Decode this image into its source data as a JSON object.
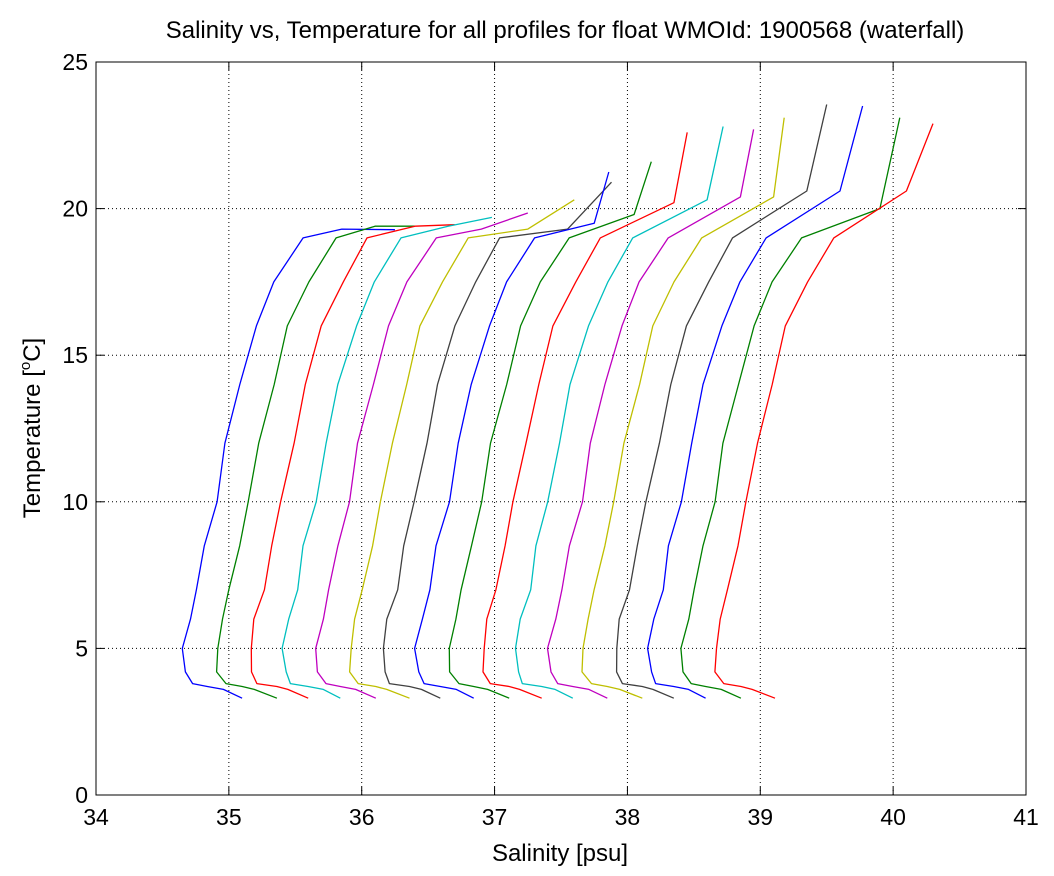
{
  "chart_data": {
    "type": "line",
    "title": "Salinity vs, Temperature for all profiles for float WMOId: 1900568 (waterfall)",
    "xlabel": "Salinity [psu]",
    "ylabel_text": "Temperature [",
    "ylabel_sup": "o",
    "ylabel_tail": "C]",
    "xlim": [
      34,
      41
    ],
    "ylim": [
      0,
      25
    ],
    "x_ticks": [
      "34",
      "35",
      "36",
      "37",
      "38",
      "39",
      "40",
      "41"
    ],
    "y_ticks": [
      "0",
      "5",
      "10",
      "15",
      "20",
      "25"
    ],
    "grid": true,
    "grid_style": "dotted",
    "profile_offset_psu": 0.25,
    "temperature_levels": [
      3.3,
      3.6,
      3.7,
      3.8,
      4.2,
      5,
      6,
      7,
      8.5,
      10,
      12,
      14,
      16,
      17.5,
      19
    ],
    "base_salinity": [
      35.1,
      34.95,
      34.85,
      34.72,
      34.67,
      34.66,
      34.7,
      34.76,
      34.82,
      34.9,
      34.98,
      35.08,
      35.2,
      35.35,
      35.55
    ],
    "series": [
      {
        "color": "#0000ff",
        "offset_index": 0,
        "top": [
          [
            35.85,
            19.3
          ],
          [
            36.25,
            19.28
          ]
        ]
      },
      {
        "color": "#008000",
        "offset_index": 1,
        "top": [
          [
            36.1,
            19.4
          ],
          [
            36.4,
            19.4
          ]
        ]
      },
      {
        "color": "#ff0000",
        "offset_index": 2,
        "top": [
          [
            36.4,
            19.4
          ],
          [
            36.7,
            19.45
          ]
        ]
      },
      {
        "color": "#00bfbf",
        "offset_index": 3,
        "top": [
          [
            36.65,
            19.4
          ],
          [
            36.98,
            19.7
          ]
        ]
      },
      {
        "color": "#bf00bf",
        "offset_index": 4,
        "top": [
          [
            36.9,
            19.3
          ],
          [
            37.25,
            19.85
          ]
        ]
      },
      {
        "color": "#bfbf00",
        "offset_index": 5,
        "top": [
          [
            37.25,
            19.3
          ],
          [
            37.6,
            20.3
          ]
        ]
      },
      {
        "color": "#404040",
        "offset_index": 6,
        "top": [
          [
            37.55,
            19.3
          ],
          [
            37.88,
            20.9
          ]
        ]
      },
      {
        "color": "#0000ff",
        "offset_index": 7,
        "top": [
          [
            37.75,
            19.5
          ],
          [
            37.86,
            21.25
          ]
        ]
      },
      {
        "color": "#008000",
        "offset_index": 8,
        "top": [
          [
            38.05,
            19.8
          ],
          [
            38.18,
            21.6
          ]
        ]
      },
      {
        "color": "#ff0000",
        "offset_index": 9,
        "top": [
          [
            38.35,
            20.2
          ],
          [
            38.45,
            22.6
          ]
        ]
      },
      {
        "color": "#00bfbf",
        "offset_index": 10,
        "top": [
          [
            38.6,
            20.3
          ],
          [
            38.72,
            22.8
          ]
        ]
      },
      {
        "color": "#bf00bf",
        "offset_index": 11,
        "top": [
          [
            38.85,
            20.4
          ],
          [
            38.95,
            22.7
          ]
        ]
      },
      {
        "color": "#bfbf00",
        "offset_index": 12,
        "top": [
          [
            39.1,
            20.4
          ],
          [
            39.18,
            23.1
          ]
        ]
      },
      {
        "color": "#404040",
        "offset_index": 13,
        "top": [
          [
            39.35,
            20.6
          ],
          [
            39.5,
            23.55
          ]
        ]
      },
      {
        "color": "#0000ff",
        "offset_index": 14,
        "top": [
          [
            39.6,
            20.6
          ],
          [
            39.77,
            23.5
          ]
        ]
      },
      {
        "color": "#008000",
        "offset_index": 15,
        "top": [
          [
            39.9,
            20.0
          ],
          [
            40.05,
            23.1
          ]
        ]
      },
      {
        "color": "#ff0000",
        "offset_index": 16,
        "top": [
          [
            40.1,
            20.6
          ],
          [
            40.3,
            22.9
          ]
        ]
      }
    ]
  }
}
